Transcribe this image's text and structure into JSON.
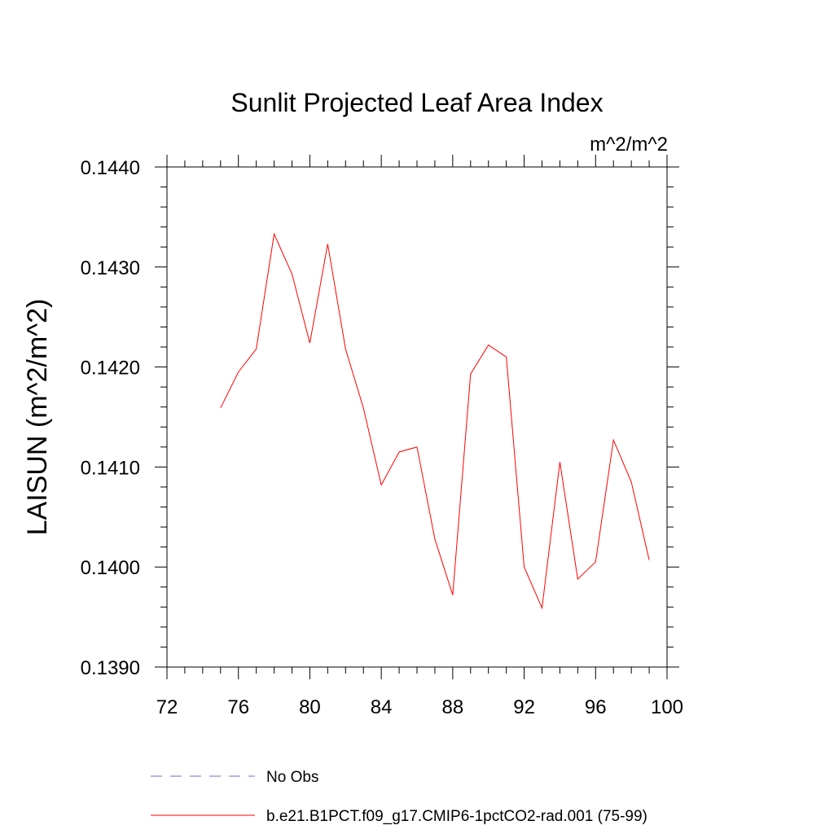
{
  "chart_data": {
    "type": "line",
    "title": "Sunlit Projected Leaf Area Index",
    "units_label": "m^2/m^2",
    "xlabel": "",
    "ylabel": "LAISUN  (m^2/m^2)",
    "xlim": [
      72,
      100
    ],
    "ylim": [
      0.139,
      0.144
    ],
    "x_ticks": [
      72,
      76,
      80,
      84,
      88,
      92,
      96,
      100
    ],
    "y_ticks": [
      0.139,
      0.14,
      0.141,
      0.142,
      0.143,
      0.144
    ],
    "y_tick_labels": [
      "0.1390",
      "0.1400",
      "0.1410",
      "0.1420",
      "0.1430",
      "0.1440"
    ],
    "grid": false,
    "legend_position": "bottom",
    "series": [
      {
        "name": "No Obs",
        "color": "#7b68c8",
        "dash": "dashed",
        "x": [],
        "values": []
      },
      {
        "name": "b.e21.B1PCT.f09_g17.CMIP6-1pctCO2-rad.001 (75-99)",
        "color": "#ff0000",
        "dash": "solid",
        "x": [
          75,
          76,
          77,
          78,
          79,
          80,
          81,
          82,
          83,
          84,
          85,
          86,
          87,
          88,
          89,
          90,
          91,
          92,
          93,
          94,
          95,
          96,
          97,
          98,
          99
        ],
        "values": [
          0.14159,
          0.14195,
          0.14218,
          0.14333,
          0.14293,
          0.14224,
          0.14323,
          0.14218,
          0.14159,
          0.14082,
          0.14115,
          0.1412,
          0.14028,
          0.13972,
          0.14193,
          0.14222,
          0.1421,
          0.14,
          0.13959,
          0.14105,
          0.13988,
          0.14005,
          0.14127,
          0.14085,
          0.14007
        ]
      }
    ]
  }
}
